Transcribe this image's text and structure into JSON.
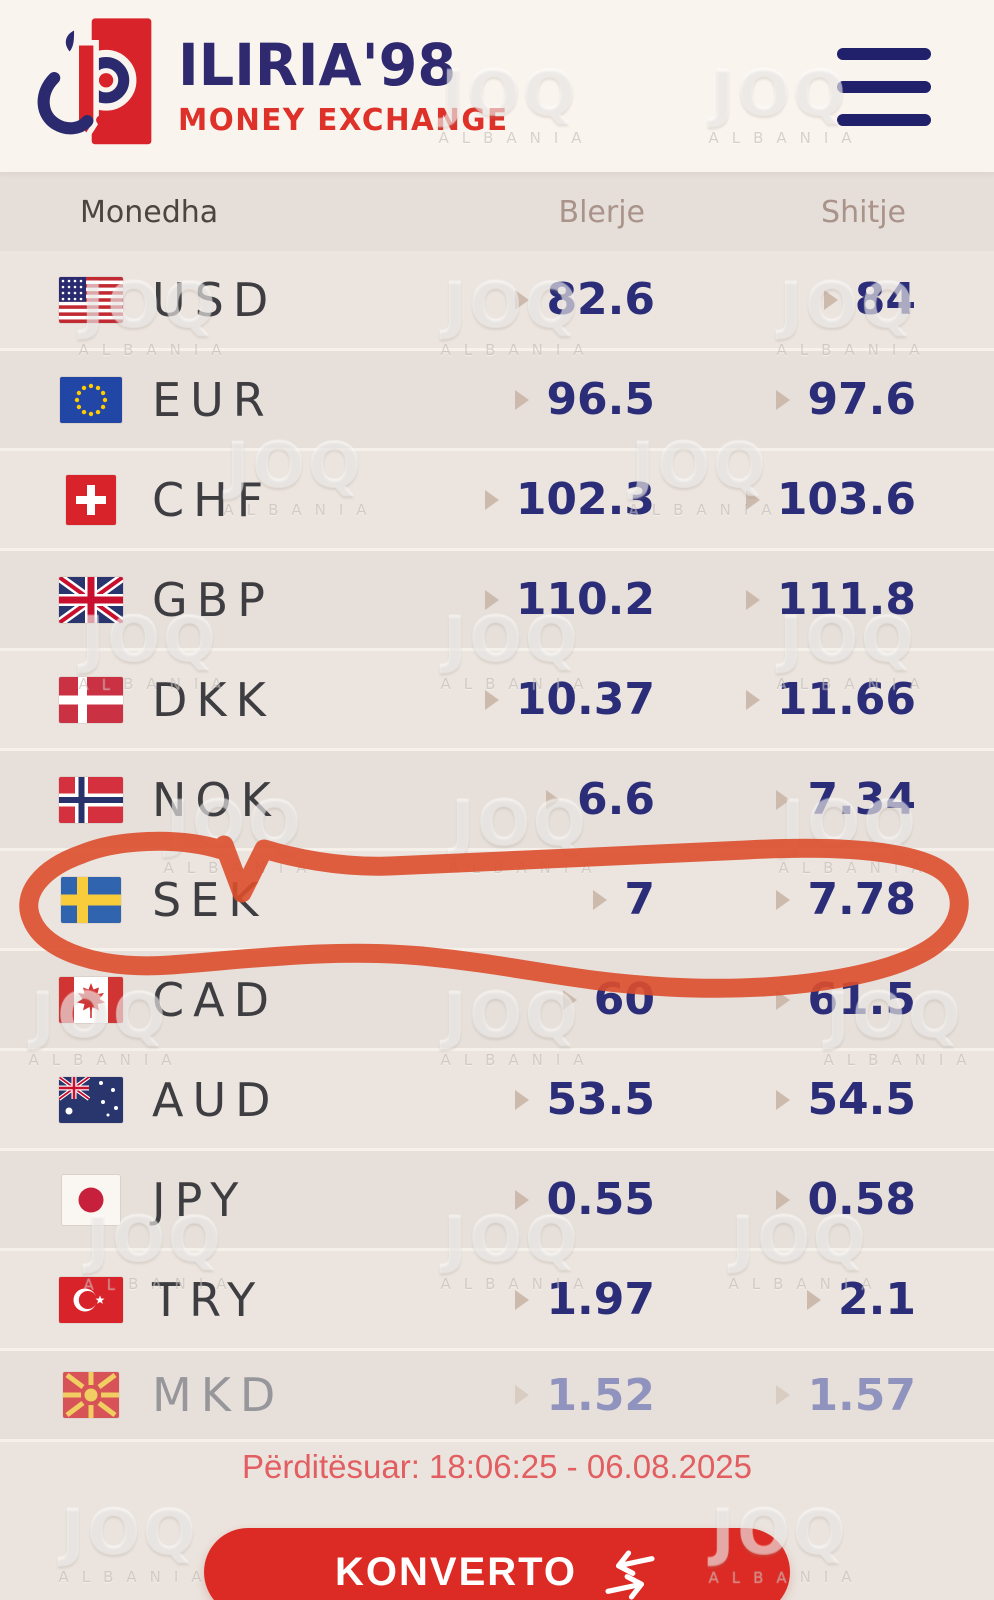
{
  "header": {
    "brand_title": "ILIRIA'98",
    "brand_subtitle": "MONEY EXCHANGE"
  },
  "menu": {
    "icon": "hamburger-icon"
  },
  "watermark": {
    "line1": "JOQ",
    "line2": "ALBANIA"
  },
  "table": {
    "columns": {
      "currency": "Monedha",
      "buy": "Blerje",
      "sell": "Shitje"
    },
    "rows": [
      {
        "code": "USD",
        "flag": "us",
        "buy": "82.6",
        "sell": "84"
      },
      {
        "code": "EUR",
        "flag": "eu",
        "buy": "96.5",
        "sell": "97.6"
      },
      {
        "code": "CHF",
        "flag": "ch",
        "buy": "102.3",
        "sell": "103.6"
      },
      {
        "code": "GBP",
        "flag": "gb",
        "buy": "110.2",
        "sell": "111.8"
      },
      {
        "code": "DKK",
        "flag": "dk",
        "buy": "10.37",
        "sell": "11.66"
      },
      {
        "code": "NOK",
        "flag": "no",
        "buy": "6.6",
        "sell": "7.34"
      },
      {
        "code": "SEK",
        "flag": "se",
        "buy": "7",
        "sell": "7.78",
        "highlighted": true
      },
      {
        "code": "CAD",
        "flag": "ca",
        "buy": "60",
        "sell": "61.5"
      },
      {
        "code": "AUD",
        "flag": "au",
        "buy": "53.5",
        "sell": "54.5"
      },
      {
        "code": "JPY",
        "flag": "jp",
        "buy": "0.55",
        "sell": "0.58"
      },
      {
        "code": "TRY",
        "flag": "tr",
        "buy": "1.97",
        "sell": "2.1"
      },
      {
        "code": "MKD",
        "flag": "mk",
        "buy": "1.52",
        "sell": "1.57",
        "faded": true
      }
    ]
  },
  "annotation": {
    "type": "hand-drawn-circle",
    "target": "SEK",
    "color": "#dc4e2c"
  },
  "footer": {
    "updated_text": "Përditësuar: 18:06:25 - 06.08.2025",
    "convert_button": "KONVERTO"
  },
  "colors": {
    "brand_navy": "#2f2a70",
    "brand_red": "#dd3129",
    "value_navy": "#2b2d78",
    "button_red": "#dc2a24",
    "timestamp_red": "#e25e60",
    "annotation_red": "#dc4e2c",
    "header_bg": "#faf4ee",
    "table_bg": "#ebe4de"
  }
}
